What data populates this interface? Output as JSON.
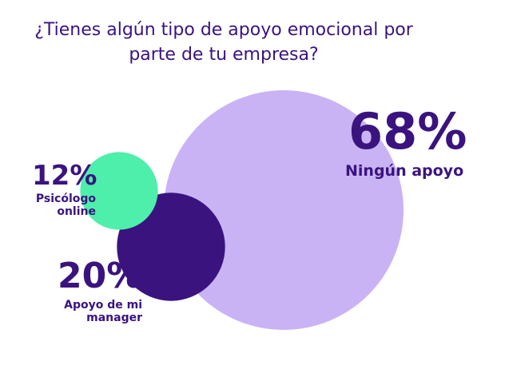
{
  "chart_data": {
    "type": "bubble",
    "title": "¿Tienes algún tipo de apoyo emocional por parte de tu empresa?",
    "categories": [
      "Ningún apoyo",
      "Apoyo de mi manager",
      "Psicólogo online"
    ],
    "values": [
      68,
      20,
      12
    ],
    "value_labels": [
      "68%",
      "20%",
      "12%"
    ],
    "colors": [
      "#c9b3f5",
      "#3a137f",
      "#4eeeab"
    ]
  }
}
